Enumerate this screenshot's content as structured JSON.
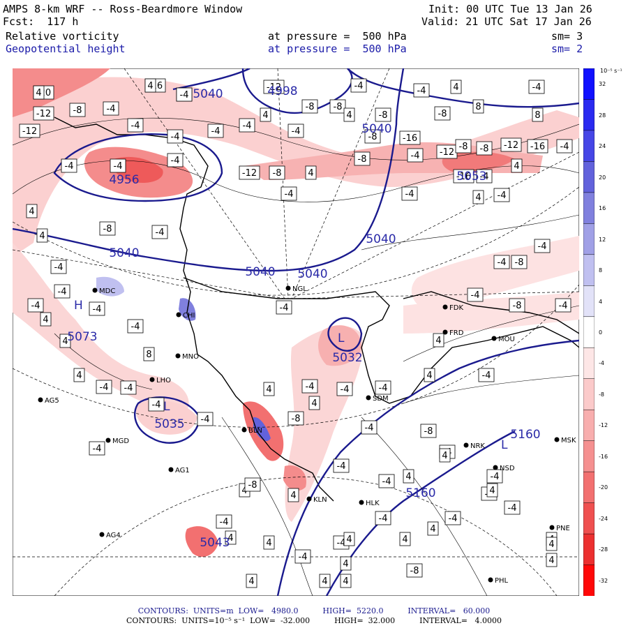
{
  "header": {
    "title": "AMPS 8-km WRF -- Ross-Beardmore Window",
    "forecast": "Fcst:  117 h",
    "init": "Init: 00 UTC Tue 13 Jan 26",
    "valid": "Valid: 21 UTC Sat 17 Jan 26",
    "field1": "Relative vorticity",
    "field1_level": "at pressure =  500 hPa",
    "field1_smooth": "sm= 3",
    "field2": "Geopotential height",
    "field2_level": "at pressure =  500 hPa",
    "field2_smooth": "sm= 2"
  },
  "colorbar": {
    "unit_label": "10⁻⁵ s⁻¹",
    "ticks": [
      "32",
      "28",
      "24",
      "20",
      "16",
      "12",
      "8",
      "4",
      "0",
      "-4",
      "-8",
      "-12",
      "-16",
      "-20",
      "-24",
      "-28",
      "-32"
    ],
    "colors": [
      "#1010ff",
      "#2a2af0",
      "#4646e6",
      "#6262dc",
      "#8080de",
      "#a0a0e6",
      "#c0c0f0",
      "#e2e2f8",
      "#ffffff",
      "#fde6e6",
      "#fbcaca",
      "#f8aeae",
      "#f59090",
      "#f27070",
      "#ef5050",
      "#ec3030",
      "#ff0808"
    ]
  },
  "height_labels": [
    "5040",
    "4998",
    "5040",
    "4956",
    "5053",
    "5040",
    "5040",
    "5040",
    "5040",
    "5073",
    "5032",
    "5035",
    "5160",
    "5160",
    "5043"
  ],
  "vort_labels": [
    "-20",
    "-16",
    "-4",
    "-12",
    "-4",
    "-4",
    "4",
    "-4",
    "-12",
    "-8",
    "-4",
    "4",
    "-8",
    "-8",
    "4",
    "-8",
    "-8",
    "8",
    "8",
    "-12",
    "-4",
    "-4",
    "-4",
    "-4",
    "-4",
    "-16",
    "-8",
    "-4",
    "-12",
    "-8",
    "-8",
    "-12",
    "-16",
    "-4",
    "-4",
    "-4",
    "-4",
    "-12",
    "-8",
    "4",
    "-8",
    "-16",
    "-4",
    "4",
    "-4",
    "-4",
    "-4",
    "4",
    "4",
    "-4",
    "-8",
    "-4",
    "-4",
    "-4",
    "-4",
    "4",
    "-4",
    "4",
    "8",
    "4",
    "-4",
    "-4",
    "-4",
    "-4",
    "-4",
    "-8",
    "-4",
    "-4",
    "-4",
    "4",
    "-4",
    "-4",
    "-8",
    "-8",
    "-4",
    "4",
    "-4",
    "-8",
    "-4",
    "4",
    "-4",
    "-4",
    "-4",
    "4",
    "-4",
    "4",
    "4",
    "-4",
    "-4",
    "4",
    "-4",
    "4",
    "-4",
    "-8",
    "-4",
    "4",
    "4",
    "4",
    "-4",
    "4",
    "-8",
    "4",
    "4",
    "4",
    "4",
    "-4",
    "-8",
    "4",
    "4",
    "-4",
    "4",
    "4",
    "4",
    "4",
    "4",
    "4",
    "4",
    "-4"
  ],
  "stations": [
    "MDC",
    "NGL",
    "FDK",
    "FRD",
    "MOU",
    "CHI",
    "MNO",
    "LHO",
    "AG5",
    "BLN",
    "MGD",
    "AG1",
    "SDM",
    "NRK",
    "NSD",
    "MSK",
    "KLN",
    "HLK",
    "AG4",
    "PNE",
    "PHL"
  ],
  "highlow": [
    "H",
    "L",
    "L",
    "L"
  ],
  "footer": {
    "line1": "CONTOURS:  UNITS=m  LOW=   4980.0          HIGH=  5220.0          INTERVAL=   60.000",
    "line2": "CONTOURS:  UNITS=10⁻⁵ s⁻¹  LOW=  -32.000          HIGH=  32.000          INTERVAL=   4.0000"
  }
}
